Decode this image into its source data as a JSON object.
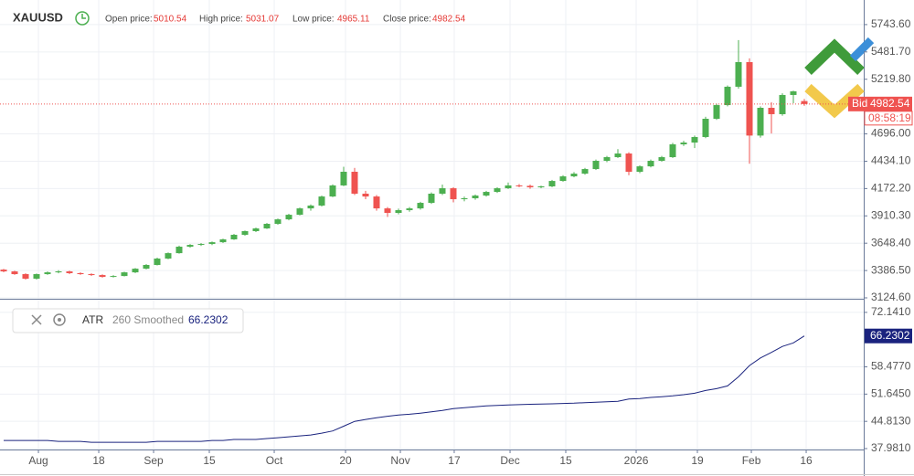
{
  "header": {
    "symbol": "XAUUSD",
    "labels": [
      "Open price:",
      "High price:",
      "Low price:",
      "Close price:"
    ]
  },
  "chart_data": [
    {
      "type": "candlestick",
      "up_color": "#4caf50",
      "down_color": "#ef5350",
      "bid_label": "Bid",
      "timer": "08:58:19",
      "xlim": [
        -0.333,
        78.417
      ],
      "ylim": [
        3115.9,
        5979.3
      ],
      "yticks": [
        {
          "value": 3124.6,
          "label": "3124.60"
        },
        {
          "value": 3386.5,
          "label": "3386.50"
        },
        {
          "value": 3648.4,
          "label": "3648.40"
        },
        {
          "value": 3910.3,
          "label": "3910.30"
        },
        {
          "value": 4172.2,
          "label": "4172.20"
        },
        {
          "value": 4434.1,
          "label": "4434.10"
        },
        {
          "value": 4696,
          "label": "4696.00"
        },
        {
          "value": 5219.8,
          "label": "5219.80"
        },
        {
          "value": 5481.7,
          "label": "5481.70"
        },
        {
          "value": 5743.6,
          "label": "5743.60"
        }
      ],
      "candles": [
        [
          3395,
          3402,
          3370,
          3378
        ],
        [
          3378,
          3385,
          3345,
          3352
        ],
        [
          3352,
          3360,
          3300,
          3308
        ],
        [
          3308,
          3358,
          3300,
          3352
        ],
        [
          3352,
          3378,
          3345,
          3369
        ],
        [
          3369,
          3390,
          3360,
          3378
        ],
        [
          3378,
          3385,
          3352,
          3361
        ],
        [
          3361,
          3370,
          3345,
          3352
        ],
        [
          3352,
          3360,
          3335,
          3343
        ],
        [
          3343,
          3350,
          3318,
          3326
        ],
        [
          3326,
          3342,
          3320,
          3334
        ],
        [
          3334,
          3375,
          3330,
          3369
        ],
        [
          3369,
          3410,
          3362,
          3404
        ],
        [
          3404,
          3448,
          3398,
          3440
        ],
        [
          3440,
          3510,
          3435,
          3501
        ],
        [
          3501,
          3560,
          3495,
          3553
        ],
        [
          3553,
          3625,
          3548,
          3615
        ],
        [
          3615,
          3640,
          3605,
          3632
        ],
        [
          3632,
          3650,
          3622,
          3641
        ],
        [
          3641,
          3665,
          3630,
          3658
        ],
        [
          3658,
          3692,
          3650,
          3685
        ],
        [
          3685,
          3737,
          3680,
          3729
        ],
        [
          3729,
          3770,
          3720,
          3764
        ],
        [
          3764,
          3798,
          3755,
          3790
        ],
        [
          3790,
          3842,
          3785,
          3834
        ],
        [
          3834,
          3885,
          3825,
          3877
        ],
        [
          3877,
          3930,
          3868,
          3921
        ],
        [
          3921,
          3990,
          3915,
          3982
        ],
        [
          3982,
          4020,
          3960,
          4009
        ],
        [
          4009,
          4105,
          4000,
          4096
        ],
        [
          4096,
          4212,
          4090,
          4202
        ],
        [
          4202,
          4381,
          4195,
          4333
        ],
        [
          4333,
          4370,
          4110,
          4123
        ],
        [
          4123,
          4150,
          4070,
          4096
        ],
        [
          4096,
          4110,
          3960,
          3982
        ],
        [
          3982,
          3995,
          3900,
          3939
        ],
        [
          3939,
          3980,
          3925,
          3965
        ],
        [
          3965,
          3995,
          3950,
          3982
        ],
        [
          3982,
          4045,
          3970,
          4035
        ],
        [
          4035,
          4135,
          4025,
          4123
        ],
        [
          4123,
          4210,
          4110,
          4175
        ],
        [
          4175,
          4185,
          4040,
          4070
        ],
        [
          4070,
          4095,
          4050,
          4079
        ],
        [
          4079,
          4115,
          4065,
          4105
        ],
        [
          4105,
          4150,
          4095,
          4140
        ],
        [
          4140,
          4185,
          4130,
          4175
        ],
        [
          4175,
          4230,
          4168,
          4202
        ],
        [
          4202,
          4215,
          4185,
          4198
        ],
        [
          4198,
          4210,
          4170,
          4184
        ],
        [
          4184,
          4200,
          4175,
          4193
        ],
        [
          4193,
          4255,
          4185,
          4245
        ],
        [
          4245,
          4300,
          4238,
          4289
        ],
        [
          4289,
          4330,
          4280,
          4315
        ],
        [
          4315,
          4370,
          4305,
          4359
        ],
        [
          4359,
          4450,
          4350,
          4438
        ],
        [
          4438,
          4485,
          4425,
          4473
        ],
        [
          4473,
          4550,
          4465,
          4508
        ],
        [
          4508,
          4520,
          4300,
          4333
        ],
        [
          4333,
          4395,
          4320,
          4385
        ],
        [
          4385,
          4450,
          4375,
          4438
        ],
        [
          4438,
          4485,
          4430,
          4473
        ],
        [
          4473,
          4610,
          4465,
          4596
        ],
        [
          4596,
          4630,
          4580,
          4613
        ],
        [
          4613,
          4680,
          4560,
          4666
        ],
        [
          4666,
          4860,
          4655,
          4841
        ],
        [
          4841,
          4985,
          4830,
          4972
        ],
        [
          4972,
          5160,
          4960,
          5148
        ],
        [
          5148,
          5595,
          5130,
          5384
        ],
        [
          5384,
          5420,
          4410,
          4680
        ],
        [
          4680,
          4960,
          4660,
          4946
        ],
        [
          4946,
          5000,
          4700,
          4885
        ],
        [
          4885,
          5085,
          4870,
          5069
        ],
        [
          5069,
          5110,
          4990,
          5104
        ],
        [
          5010.54,
          5031.07,
          4965.11,
          4982.54
        ]
      ]
    },
    {
      "type": "line",
      "name": "ATR",
      "params": "260 Smoothed",
      "color": "#1a237e",
      "xlim": [
        -0.333,
        78.417
      ],
      "xticks": [
        {
          "value": 3.17,
          "label": "Aug"
        },
        {
          "value": 8.67,
          "label": "18"
        },
        {
          "value": 13.67,
          "label": "Sep"
        },
        {
          "value": 18.75,
          "label": "15"
        },
        {
          "value": 24.67,
          "label": "Oct"
        },
        {
          "value": 31.17,
          "label": "20"
        },
        {
          "value": 36.17,
          "label": "Nov"
        },
        {
          "value": 41.08,
          "label": "17"
        },
        {
          "value": 46.17,
          "label": "Dec"
        },
        {
          "value": 51.25,
          "label": "15"
        },
        {
          "value": 57.67,
          "label": "2026"
        },
        {
          "value": 63.25,
          "label": "19"
        },
        {
          "value": 68.17,
          "label": "Feb"
        },
        {
          "value": 73.17,
          "label": "16"
        }
      ],
      "ylim": [
        37.75,
        75.33
      ],
      "yticks": [
        {
          "value": 37.981,
          "label": "37.9810"
        },
        {
          "value": 44.813,
          "label": "44.8130"
        },
        {
          "value": 51.645,
          "label": "51.6450"
        },
        {
          "value": 58.477,
          "label": "58.4770"
        },
        {
          "value": 72.141,
          "label": "72.1410"
        }
      ],
      "values": [
        40.03,
        40.03,
        40.03,
        40.03,
        40.03,
        39.8,
        39.8,
        39.8,
        39.57,
        39.57,
        39.57,
        39.57,
        39.57,
        39.57,
        39.8,
        39.8,
        39.8,
        39.8,
        39.8,
        40.03,
        40.03,
        40.26,
        40.26,
        40.26,
        40.49,
        40.71,
        40.94,
        41.17,
        41.4,
        41.85,
        42.4,
        43.6,
        44.81,
        45.3,
        45.72,
        46.1,
        46.41,
        46.6,
        46.86,
        47.2,
        47.54,
        48,
        48.23,
        48.45,
        48.68,
        48.8,
        48.9,
        49,
        49.1,
        49.14,
        49.2,
        49.3,
        49.37,
        49.5,
        49.59,
        49.7,
        49.82,
        50.4,
        50.51,
        50.8,
        51,
        51.19,
        51.5,
        51.87,
        52.55,
        53,
        53.69,
        56,
        58.8,
        60.7,
        62.1,
        63.6,
        64.5,
        66.2302
      ]
    }
  ]
}
